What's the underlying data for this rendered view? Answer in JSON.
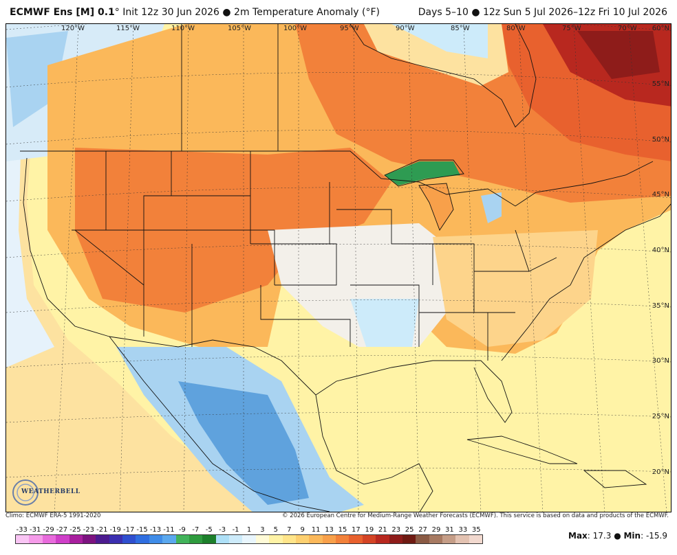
{
  "header": {
    "model": "ECMWF Ens [M] 0.1",
    "degree_mark": "°",
    "init": "Init 12z 30 Jun 2026",
    "bullet": "●",
    "product": "2m Temperature Anomaly (°F)",
    "valid": "Days 5–10 ● 12z Sun 5 Jul 2026–12z Fri 10 Jul 2026"
  },
  "map": {
    "longitudes": [
      "120°W",
      "115°W",
      "110°W",
      "105°W",
      "100°W",
      "95°W",
      "90°W",
      "85°W",
      "80°W",
      "75°W",
      "70°W"
    ],
    "latitudes": [
      "60°N",
      "55°N",
      "50°N",
      "45°N",
      "40°N",
      "35°N",
      "30°N",
      "25°N",
      "20°N"
    ],
    "logo_text": "WEATHERBELL",
    "colors": {
      "ocean_neutral": "#fff3a6",
      "warm_light": "#fdd48b",
      "warm": "#f7a259",
      "warm_strong": "#ee6f3d",
      "hot": "#d8422a",
      "very_hot": "#a8221c",
      "cool_light": "#e6f2fb",
      "cool": "#a9d3f1",
      "cold": "#5fa2dd",
      "lake_green": "#2e9b52"
    }
  },
  "footer": {
    "climo": "Climo: ECMWF ERA-5 1991-2020",
    "copyright": "© 2026 European Centre for Medium-Range Weather Forecasts (ECMWF). This service is based on data and products of the ECMWF.",
    "scale_ticks": [
      "-33",
      "-31",
      "-29",
      "-27",
      "-25",
      "-23",
      "-21",
      "-19",
      "-17",
      "-15",
      "-13",
      "-11",
      "-9",
      "-7",
      "-5",
      "-3",
      "-1",
      "1",
      "3",
      "5",
      "7",
      "9",
      "11",
      "13",
      "15",
      "17",
      "19",
      "21",
      "23",
      "25",
      "27",
      "29",
      "31",
      "33",
      "35"
    ],
    "scale_colors": [
      "#f9c5f4",
      "#f59be9",
      "#e86bdc",
      "#cf3fc8",
      "#a81f9e",
      "#7c1380",
      "#4c1b8f",
      "#3b2fb0",
      "#2f4fcf",
      "#2f6ee0",
      "#3f8ce8",
      "#5aa8ee",
      "#41b35a",
      "#2e9b3e",
      "#1c7f2b",
      "#aee0f7",
      "#cdebfa",
      "#e9f6fd",
      "#fffbd8",
      "#fff3a6",
      "#ffe58a",
      "#fdd070",
      "#fbb85a",
      "#f8a04a",
      "#f2813a",
      "#e8612e",
      "#d44425",
      "#b8281f",
      "#8e1c1a",
      "#6e1a12",
      "#8a5a44",
      "#a77a62",
      "#c59d87",
      "#e3c2b1",
      "#f2d9cf"
    ],
    "max_label": "Max",
    "max_value": ": 17.3",
    "min_label": "Min",
    "min_value": ": -15.9",
    "sep": " ● "
  }
}
